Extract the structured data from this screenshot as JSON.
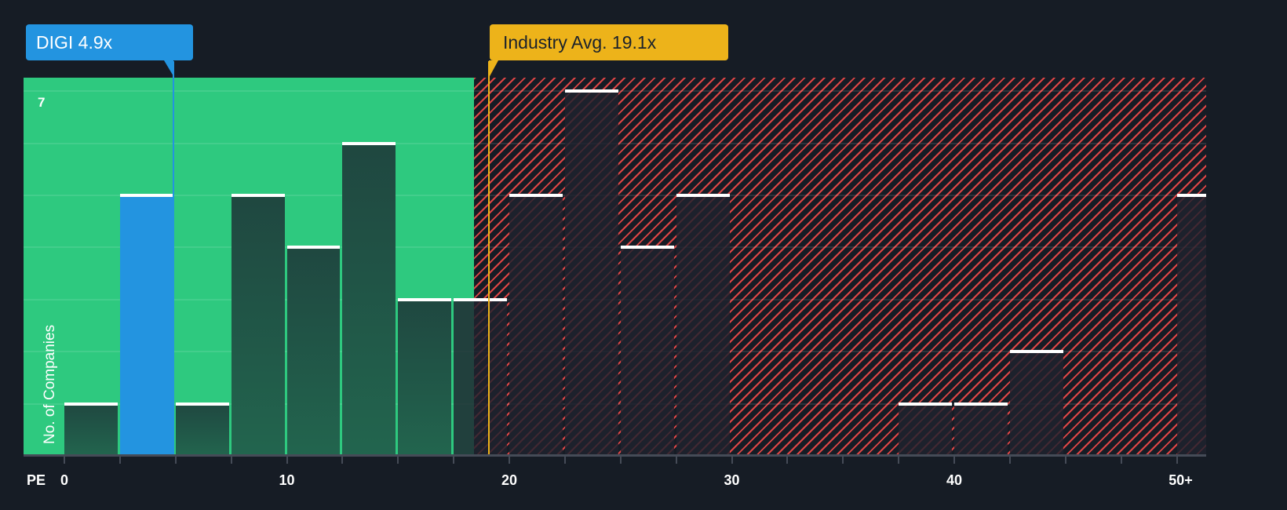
{
  "callouts": {
    "company": {
      "label": "DIGI 4.9x",
      "value": 4.9,
      "color": "#2394e0"
    },
    "industry": {
      "label": "Industry Avg. 19.1x",
      "value": 19.1,
      "color": "#edb31a"
    }
  },
  "axis": {
    "y_label": "No. of Companies",
    "y_top_tick": "7",
    "x_prefix": "PE",
    "x_ticks": [
      "0",
      "10",
      "20",
      "30",
      "40",
      "50+"
    ]
  },
  "colors": {
    "good_zone": "#2ec97f",
    "bad_zone_hatch": "#e04545",
    "background": "#161c25",
    "highlight_bar": "#2394e0"
  },
  "chart_data": {
    "type": "bar",
    "title": "",
    "xlabel": "PE",
    "ylabel": "No. of Companies",
    "ylim": [
      0,
      7
    ],
    "xlim": [
      0,
      51.5
    ],
    "bin_width": 2.5,
    "categories": [
      "0-2.5",
      "2.5-5",
      "5-7.5",
      "7.5-10",
      "10-12.5",
      "12.5-15",
      "15-17.5",
      "17.5-20",
      "20-22.5",
      "22.5-25",
      "25-27.5",
      "27.5-30",
      "30-32.5",
      "32.5-35",
      "35-37.5",
      "37.5-40",
      "40-42.5",
      "42.5-45",
      "45-47.5",
      "47.5-50",
      "50+"
    ],
    "values": [
      1,
      5,
      1,
      5,
      4,
      6,
      3,
      3,
      5,
      7,
      4,
      5,
      0,
      0,
      0,
      1,
      1,
      2,
      0,
      0,
      5
    ],
    "highlight_category": "2.5-5",
    "annotations": [
      {
        "label": "DIGI 4.9x",
        "x": 4.9
      },
      {
        "label": "Industry Avg. 19.1x",
        "x": 19.1
      }
    ],
    "zones": [
      {
        "name": "below-average",
        "from": 0,
        "to": 18.4,
        "color": "#2ec97f"
      },
      {
        "name": "above-average",
        "from": 18.4,
        "to": 51.5,
        "pattern": "hatched-red"
      }
    ],
    "grid": true,
    "legend": null
  }
}
